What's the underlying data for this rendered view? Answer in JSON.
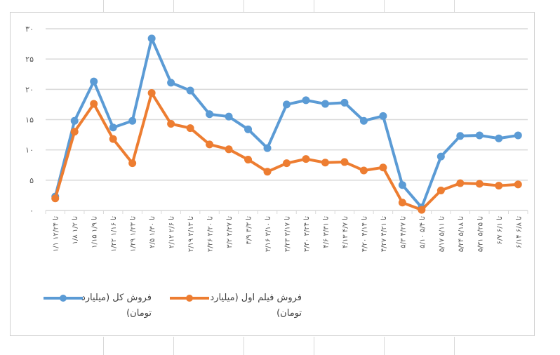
{
  "chart_data": {
    "type": "line",
    "title": "",
    "xlabel": "",
    "ylabel": "",
    "ylim": [
      0,
      30
    ],
    "yticks": [
      "۰",
      "۵",
      "۱۰",
      "۱۵",
      "۲۰",
      "۲۵",
      "۳۰"
    ],
    "ytick_values": [
      0,
      5,
      10,
      15,
      20,
      25,
      30
    ],
    "grid": true,
    "legend_position": "bottom",
    "categories": [
      "۱/۱ تا ۱۲/۲۴",
      "۱/۸ تا ۱/۲",
      "۱/۱۵ تا ۱/۹",
      "۱/۲۲ تا ۱/۱۶",
      "۱/۲۹ تا ۱/۲۳",
      "۲/۵ تا ۱/۳۰",
      "۲/۱۲ تا ۲/۶",
      "۲/۱۹ تا ۲/۱۳",
      "۲/۲۶ تا ۲/۲۰",
      "۳/۲ تا ۲/۲۷",
      "۳/۹ تا ۳/۳",
      "۳/۱۶ تا ۳/۱۰",
      "۳/۲۳ تا ۳/۱۷",
      "۳/۳۰ تا ۳/۲۴",
      "۴/۶ تا ۳/۳۱",
      "۴/۱۳ تا ۴/۷",
      "۴/۲۰ تا ۴/۱۴",
      "۴/۲۷ تا ۴/۲۱",
      "۵/۳ تا ۴/۲۷",
      "۵/۱۰ تا ۵/۴",
      "۵/۱۷ تا ۵/۱۱",
      "۵/۲۴ تا ۵/۱۸",
      "۵/۳۱ تا ۵/۲۵",
      "۶/۷ تا ۶/۱",
      "۶/۱۴ تا ۶/۸"
    ],
    "series": [
      {
        "name": "فروش کل (میلیارد تومان)",
        "color": "#5B9BD5",
        "values": [
          2.3,
          14.8,
          21.3,
          13.7,
          14.8,
          28.4,
          21.1,
          19.8,
          15.9,
          15.5,
          13.4,
          10.3,
          17.5,
          18.2,
          17.6,
          17.8,
          14.8,
          15.6,
          4.2,
          0.5,
          8.9,
          12.3,
          12.4,
          11.9,
          12.4
        ]
      },
      {
        "name": "فروش فیلم اول (میلیارد تومان)",
        "color": "#ED7D31",
        "values": [
          2.0,
          13.0,
          17.6,
          11.8,
          7.8,
          19.4,
          14.3,
          13.6,
          10.9,
          10.1,
          8.4,
          6.4,
          7.8,
          8.5,
          7.9,
          8.0,
          6.6,
          7.1,
          1.3,
          0.1,
          3.3,
          4.5,
          4.4,
          4.1,
          4.3
        ]
      }
    ]
  },
  "legend": {
    "total": {
      "line1": "فروش کل (میلیارد",
      "line2": "تومان)",
      "color": "#5B9BD5"
    },
    "first_film": {
      "line1": "فروش فیلم اول (میلیارد",
      "line2": "تومان)",
      "color": "#ED7D31"
    }
  },
  "colors": {
    "grid": "#d9d9d9",
    "axis_text": "#595959",
    "frame": "#d0d0d0"
  }
}
